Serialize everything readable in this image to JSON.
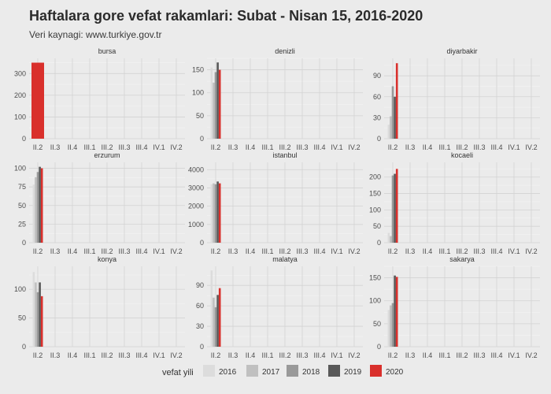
{
  "header": {
    "title": "Haftalara gore vefat rakamlari: Subat - Nisan 15, 2016-2020",
    "subtitle": "Veri kaynagi: www.turkiye.gov.tr"
  },
  "legend": {
    "title": "vefat yili",
    "items": [
      {
        "label": "2016",
        "color": "#dcdcdc"
      },
      {
        "label": "2017",
        "color": "#c0c0c0"
      },
      {
        "label": "2018",
        "color": "#999999"
      },
      {
        "label": "2019",
        "color": "#595959"
      },
      {
        "label": "2020",
        "color": "#d9302c"
      }
    ]
  },
  "chart_data": {
    "type": "bar",
    "categories": [
      "II.2",
      "II.3",
      "II.4",
      "III.1",
      "III.2",
      "III.3",
      "III.4",
      "IV.1",
      "IV.2"
    ],
    "series_names": [
      "2016",
      "2017",
      "2018",
      "2019",
      "2020"
    ],
    "panels": [
      {
        "name": "bursa",
        "yticks": [
          0,
          100,
          200,
          300
        ],
        "ylim": [
          0,
          370
        ],
        "values": [
          null,
          null,
          null,
          null,
          350
        ]
      },
      {
        "name": "denizli",
        "yticks": [
          0,
          50,
          100,
          150
        ],
        "ylim": [
          0,
          175
        ],
        "values": [
          155,
          122,
          145,
          166,
          150
        ]
      },
      {
        "name": "diyarbakir",
        "yticks": [
          0,
          30,
          60,
          90
        ],
        "ylim": [
          0,
          115
        ],
        "values": [
          20,
          32,
          75,
          60,
          108
        ]
      },
      {
        "name": "erzurum",
        "yticks": [
          0,
          25,
          50,
          75,
          100
        ],
        "ylim": [
          0,
          108
        ],
        "values": [
          78,
          88,
          95,
          102,
          100
        ]
      },
      {
        "name": "istanbul",
        "yticks": [
          0,
          1000,
          2000,
          3000,
          4000
        ],
        "ylim": [
          0,
          4400
        ],
        "values": [
          3200,
          3250,
          3200,
          3350,
          3250
        ]
      },
      {
        "name": "kocaeli",
        "yticks": [
          0,
          50,
          100,
          150,
          200
        ],
        "ylim": [
          0,
          245
        ],
        "values": [
          30,
          20,
          205,
          210,
          225
        ]
      },
      {
        "name": "konya",
        "yticks": [
          0,
          50,
          100
        ],
        "ylim": [
          0,
          140
        ],
        "values": [
          130,
          112,
          95,
          112,
          88
        ]
      },
      {
        "name": "malatya",
        "yticks": [
          0,
          30,
          60,
          90
        ],
        "ylim": [
          0,
          118
        ],
        "values": [
          112,
          72,
          58,
          76,
          86
        ]
      },
      {
        "name": "sakarya",
        "yticks": [
          0,
          50,
          100,
          150
        ],
        "ylim": [
          0,
          175
        ],
        "values": [
          80,
          90,
          95,
          155,
          152
        ]
      }
    ]
  }
}
